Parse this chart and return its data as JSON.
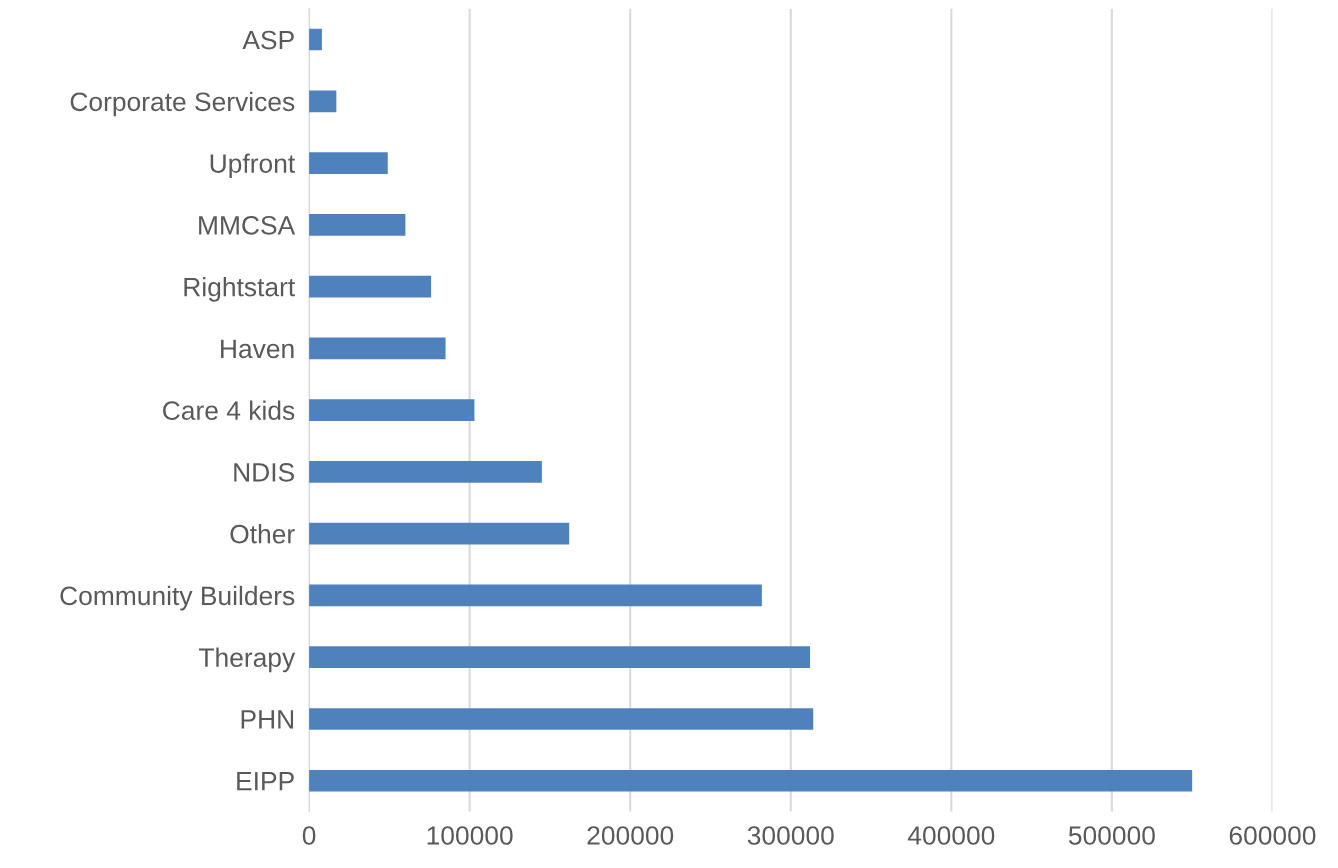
{
  "chart_data": {
    "type": "bar",
    "orientation": "horizontal",
    "categories": [
      "ASP",
      "Corporate Services",
      "Upfront",
      "MMCSA",
      "Rightstart",
      "Haven",
      "Care 4 kids",
      "NDIS",
      "Other",
      "Community Builders",
      "Therapy",
      "PHN",
      "EIPP"
    ],
    "values": [
      8000,
      17000,
      49000,
      60000,
      76000,
      85000,
      103000,
      145000,
      162000,
      282000,
      312000,
      314000,
      550000
    ],
    "color": "#4f81bd",
    "xlim": [
      0,
      600000
    ],
    "xticks": [
      0,
      100000,
      200000,
      300000,
      400000,
      500000,
      600000
    ],
    "grid": "x",
    "legend": false
  }
}
